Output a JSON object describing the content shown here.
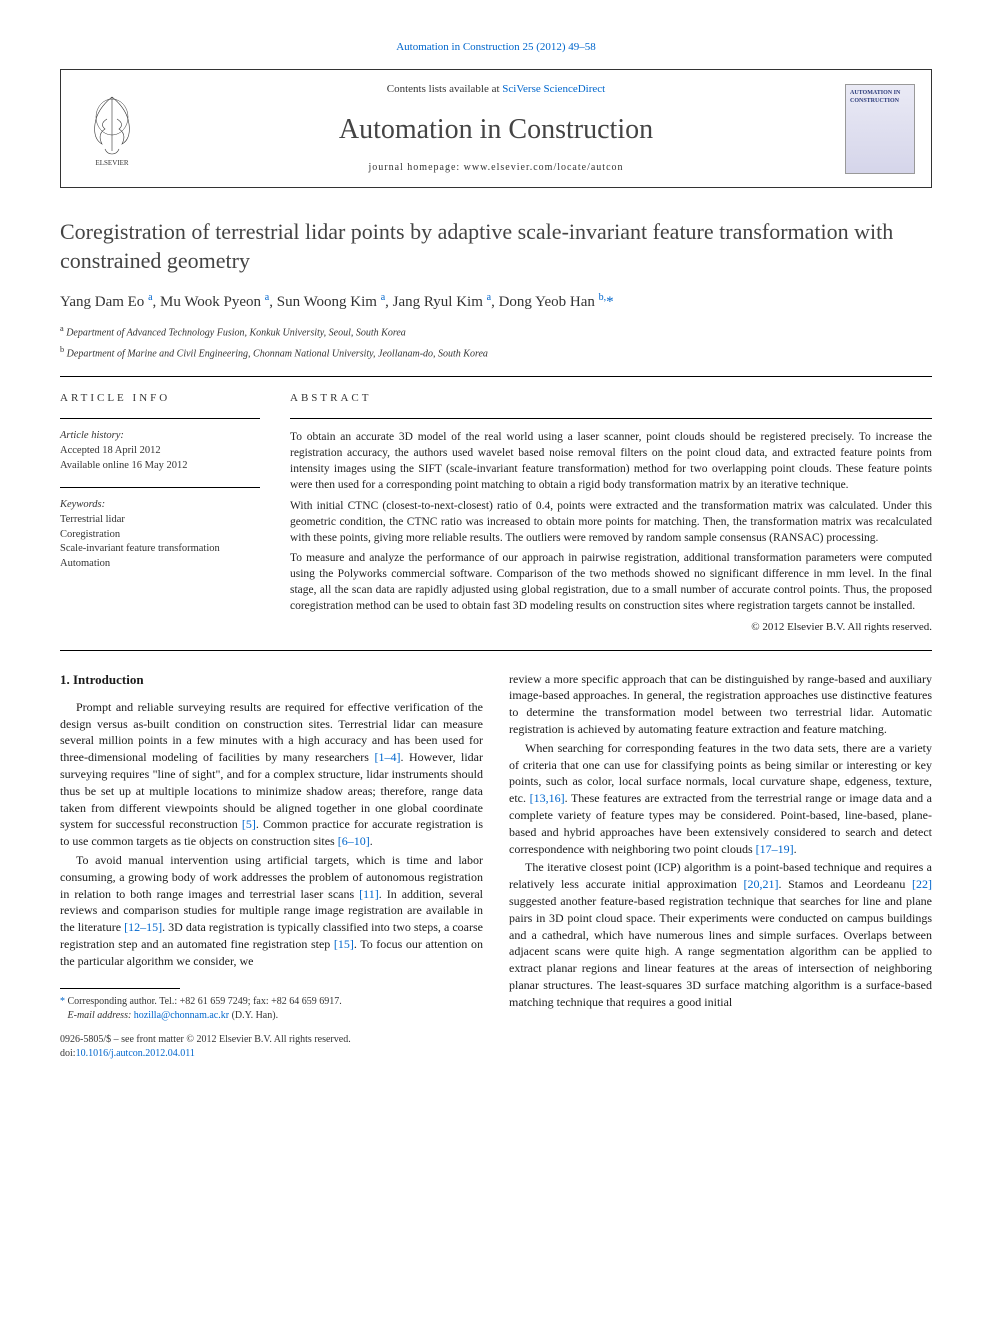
{
  "journal_ref": {
    "journal": "Automation in Construction",
    "citation": "25 (2012) 49–58"
  },
  "header": {
    "contents_prefix": "Contents lists available at",
    "contents_link": "SciVerse ScienceDirect",
    "journal_title": "Automation in Construction",
    "homepage_label": "journal homepage: www.elsevier.com/locate/autcon",
    "cover_label": "AUTOMATION IN CONSTRUCTION"
  },
  "article": {
    "title": "Coregistration of terrestrial lidar points by adaptive scale-invariant feature transformation with constrained geometry",
    "authors_html": "Yang Dam Eo <sup>a</sup>, Mu Wook Pyeon <sup>a</sup>, Sun Woong Kim <sup>a</sup>, Jang Ryul Kim <sup>a</sup>, Dong Yeob Han <sup>b,</sup>",
    "affiliations": [
      {
        "sup": "a",
        "text": "Department of Advanced Technology Fusion, Konkuk University, Seoul, South Korea"
      },
      {
        "sup": "b",
        "text": "Department of Marine and Civil Engineering, Chonnam National University, Jeollanam-do, South Korea"
      }
    ]
  },
  "info": {
    "label": "ARTICLE INFO",
    "history_label": "Article history:",
    "accepted": "Accepted 18 April 2012",
    "online": "Available online 16 May 2012",
    "keywords_label": "Keywords:",
    "keywords": [
      "Terrestrial lidar",
      "Coregistration",
      "Scale-invariant feature transformation",
      "Automation"
    ]
  },
  "abstract": {
    "label": "ABSTRACT",
    "paragraphs": [
      "To obtain an accurate 3D model of the real world using a laser scanner, point clouds should be registered precisely. To increase the registration accuracy, the authors used wavelet based noise removal filters on the point cloud data, and extracted feature points from intensity images using the SIFT (scale-invariant feature transformation) method for two overlapping point clouds. These feature points were then used for a corresponding point matching to obtain a rigid body transformation matrix by an iterative technique.",
      "With initial CTNC (closest-to-next-closest) ratio of 0.4, points were extracted and the transformation matrix was calculated. Under this geometric condition, the CTNC ratio was increased to obtain more points for matching. Then, the transformation matrix was recalculated with these points, giving more reliable results. The outliers were removed by random sample consensus (RANSAC) processing.",
      "To measure and analyze the performance of our approach in pairwise registration, additional transformation parameters were computed using the Polyworks commercial software. Comparison of the two methods showed no significant difference in mm level. In the final stage, all the scan data are rapidly adjusted using global registration, due to a small number of accurate control points. Thus, the proposed coregistration method can be used to obtain fast 3D modeling results on construction sites where registration targets cannot be installed."
    ],
    "copyright": "© 2012 Elsevier B.V. All rights reserved."
  },
  "body": {
    "heading": "1. Introduction",
    "left": [
      "Prompt and reliable surveying results are required for effective verification of the design versus as-built condition on construction sites. Terrestrial lidar can measure several million points in a few minutes with a high accuracy and has been used for three-dimensional modeling of facilities by many researchers [1–4]. However, lidar surveying requires \"line of sight\", and for a complex structure, lidar instruments should thus be set up at multiple locations to minimize shadow areas; therefore, range data taken from different viewpoints should be aligned together in one global coordinate system for successful reconstruction [5]. Common practice for accurate registration is to use common targets as tie objects on construction sites [6–10].",
      "To avoid manual intervention using artificial targets, which is time and labor consuming, a growing body of work addresses the problem of autonomous registration in relation to both range images and terrestrial laser scans [11]. In addition, several reviews and comparison studies for multiple range image registration are available in the literature [12–15]. 3D data registration is typically classified into two steps, a coarse registration step and an automated fine registration step [15]. To focus our attention on the particular algorithm we consider, we"
    ],
    "right": [
      "review a more specific approach that can be distinguished by range-based and auxiliary image-based approaches. In general, the registration approaches use distinctive features to determine the transformation model between two terrestrial lidar. Automatic registration is achieved by automating feature extraction and feature matching.",
      "When searching for corresponding features in the two data sets, there are a variety of criteria that one can use for classifying points as being similar or interesting or key points, such as color, local surface normals, local curvature shape, edgeness, texture, etc. [13,16]. These features are extracted from the terrestrial range or image data and a complete variety of feature types may be considered. Point-based, line-based, plane-based and hybrid approaches have been extensively considered to search and detect correspondence with neighboring two point clouds [17–19].",
      "The iterative closest point (ICP) algorithm is a point-based technique and requires a relatively less accurate initial approximation [20,21]. Stamos and Leordeanu [22] suggested another feature-based registration technique that searches for line and plane pairs in 3D point cloud space. Their experiments were conducted on campus buildings and a cathedral, which have numerous lines and simple surfaces. Overlaps between adjacent scans were quite high. A range segmentation algorithm can be applied to extract planar regions and linear features at the areas of intersection of neighboring planar structures. The least-squares 3D surface matching algorithm is a surface-based matching technique that requires a good initial"
    ]
  },
  "footnote": {
    "corresponding": "Corresponding author. Tel.: +82 61 659 7249; fax: +82 64 659 6917.",
    "email_label": "E-mail address:",
    "email": "hozilla@chonnam.ac.kr",
    "email_suffix": "(D.Y. Han)."
  },
  "doi": {
    "issn": "0926-5805/$ – see front matter © 2012 Elsevier B.V. All rights reserved.",
    "doi_label": "doi:",
    "doi": "10.1016/j.autcon.2012.04.011"
  },
  "refs": {
    "r1": "[1–4]",
    "r5": "[5]",
    "r6": "[6–10]",
    "r11": "[11]",
    "r12": "[12–15]",
    "r15": "[15]",
    "r13": "[13,16]",
    "r17": "[17–19]",
    "r20": "[20,21]",
    "r22": "[22]"
  },
  "colors": {
    "link": "#0066cc",
    "text": "#1a1a1a",
    "title": "#444444",
    "rule": "#000000"
  }
}
